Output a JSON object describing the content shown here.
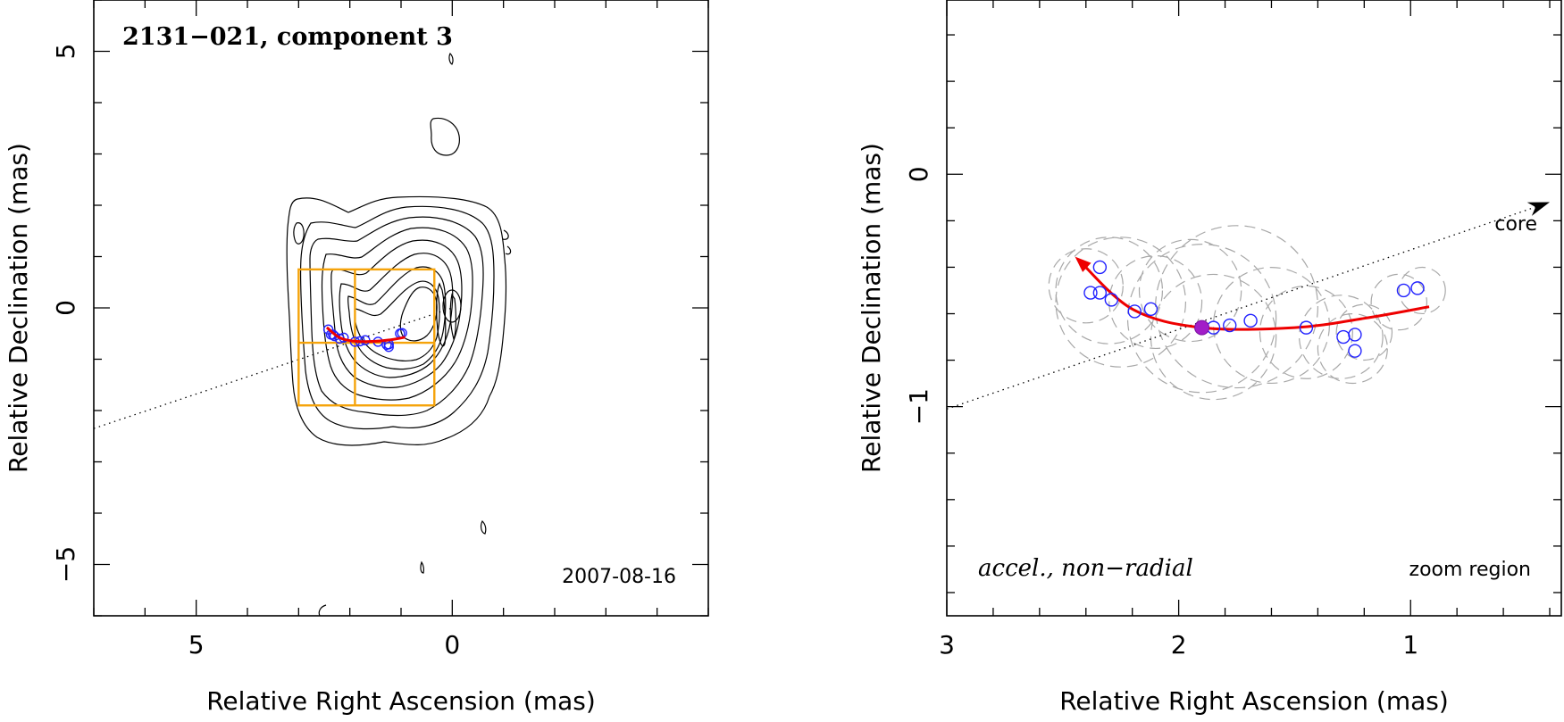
{
  "chart_data": [
    {
      "type": "contour",
      "title": "2131−021, component 3",
      "date_label": "2007-08-16",
      "xlabel": "Relative Right Ascension (mas)",
      "ylabel": "Relative Declination (mas)",
      "xlim": [
        7,
        -5
      ],
      "ylim": [
        -6,
        6
      ],
      "xticks": [
        {
          "value": 5,
          "label": "5"
        },
        {
          "value": 0,
          "label": "0"
        }
      ],
      "yticks": [
        {
          "value": 5,
          "label": "5"
        },
        {
          "value": 0,
          "label": "0"
        },
        {
          "value": -5,
          "label": "−5"
        }
      ],
      "core_direction_line": {
        "x": [
          7,
          0
        ],
        "y": [
          -2.35,
          0
        ]
      },
      "zoom_box": {
        "x": [
          3.0,
          0.35
        ],
        "y": [
          -1.9,
          0.75
        ],
        "x_split": 1.9,
        "y_split": -0.68
      },
      "epoch_positions": [
        {
          "x": 2.42,
          "y": -0.42
        },
        {
          "x": 2.33,
          "y": -0.52
        },
        {
          "x": 2.37,
          "y": -0.52
        },
        {
          "x": 2.3,
          "y": -0.55
        },
        {
          "x": 2.2,
          "y": -0.6
        },
        {
          "x": 2.12,
          "y": -0.58
        },
        {
          "x": 1.9,
          "y": -0.66
        },
        {
          "x": 1.8,
          "y": -0.65
        },
        {
          "x": 1.7,
          "y": -0.63
        },
        {
          "x": 1.45,
          "y": -0.66
        },
        {
          "x": 1.28,
          "y": -0.72
        },
        {
          "x": 1.24,
          "y": -0.71
        },
        {
          "x": 1.24,
          "y": -0.76
        },
        {
          "x": 1.02,
          "y": -0.5
        },
        {
          "x": 0.98,
          "y": -0.49
        }
      ],
      "trajectory": {
        "x": [
          2.45,
          2.2,
          1.9,
          1.5,
          1.2,
          0.92
        ],
        "y": [
          -0.38,
          -0.58,
          -0.65,
          -0.65,
          -0.62,
          -0.57
        ]
      }
    },
    {
      "type": "scatter",
      "xlabel": "Relative Right Ascension (mas)",
      "ylabel": "Relative Declination (mas)",
      "xlim": [
        3,
        0.35
      ],
      "ylim": [
        -1.9,
        0.75
      ],
      "xticks": [
        {
          "value": 3,
          "label": "3"
        },
        {
          "value": 2,
          "label": "2"
        },
        {
          "value": 1,
          "label": "1"
        }
      ],
      "yticks": [
        {
          "value": 0,
          "label": "0"
        },
        {
          "value": -1,
          "label": "−1"
        }
      ],
      "annotations": {
        "motion": "accel., non−radial",
        "region": "zoom region",
        "core": "core"
      },
      "core_direction_line": {
        "x": [
          3,
          0.4
        ],
        "y": [
          -1.01,
          -0.12
        ]
      },
      "reference_epoch": {
        "x": 1.9,
        "y": -0.66
      },
      "epoch_positions": [
        {
          "x": 2.34,
          "y": -0.4
        },
        {
          "x": 2.38,
          "y": -0.51
        },
        {
          "x": 2.34,
          "y": -0.51
        },
        {
          "x": 2.29,
          "y": -0.54
        },
        {
          "x": 2.19,
          "y": -0.59
        },
        {
          "x": 2.12,
          "y": -0.58
        },
        {
          "x": 1.85,
          "y": -0.66
        },
        {
          "x": 1.78,
          "y": -0.65
        },
        {
          "x": 1.69,
          "y": -0.63
        },
        {
          "x": 1.45,
          "y": -0.66
        },
        {
          "x": 1.29,
          "y": -0.7
        },
        {
          "x": 1.24,
          "y": -0.69
        },
        {
          "x": 1.24,
          "y": -0.76
        },
        {
          "x": 1.03,
          "y": -0.5
        },
        {
          "x": 0.97,
          "y": -0.49
        }
      ],
      "component_sizes": [
        {
          "x": 2.3,
          "y": -0.5,
          "r": 0.23
        },
        {
          "x": 2.4,
          "y": -0.48,
          "r": 0.16
        },
        {
          "x": 2.25,
          "y": -0.55,
          "r": 0.28
        },
        {
          "x": 2.1,
          "y": -0.55,
          "r": 0.2
        },
        {
          "x": 1.9,
          "y": -0.62,
          "r": 0.32
        },
        {
          "x": 1.75,
          "y": -0.57,
          "r": 0.35
        },
        {
          "x": 1.85,
          "y": -0.7,
          "r": 0.27
        },
        {
          "x": 1.95,
          "y": -0.5,
          "r": 0.22
        },
        {
          "x": 1.6,
          "y": -0.65,
          "r": 0.25
        },
        {
          "x": 1.45,
          "y": -0.68,
          "r": 0.2
        },
        {
          "x": 1.3,
          "y": -0.7,
          "r": 0.18
        },
        {
          "x": 1.25,
          "y": -0.75,
          "r": 0.15
        },
        {
          "x": 1.2,
          "y": -0.68,
          "r": 0.12
        },
        {
          "x": 1.05,
          "y": -0.55,
          "r": 0.12
        },
        {
          "x": 0.95,
          "y": -0.5,
          "r": 0.1
        }
      ],
      "trajectory": {
        "x": [
          2.43,
          2.2,
          1.9,
          1.5,
          1.2,
          0.92
        ],
        "y": [
          -0.37,
          -0.58,
          -0.66,
          -0.66,
          -0.62,
          -0.57
        ]
      }
    }
  ]
}
